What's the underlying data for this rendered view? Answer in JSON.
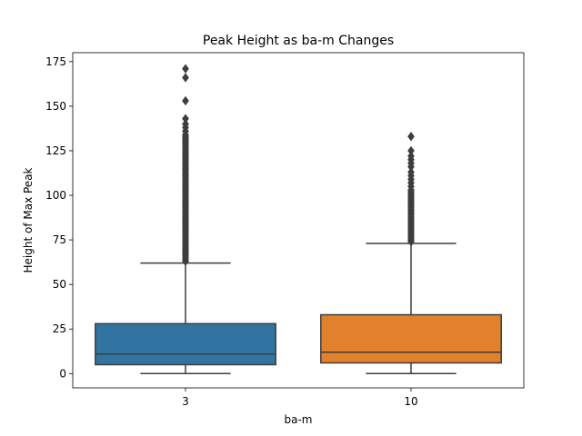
{
  "chart_data": {
    "type": "box",
    "title": "Peak Height as ba-m Changes",
    "xlabel": "ba-m",
    "ylabel": "Height of Max Peak",
    "ylim": [
      -8,
      180
    ],
    "yticks": [
      0,
      25,
      50,
      75,
      100,
      125,
      150,
      175
    ],
    "ytick_labels": [
      "0",
      "25",
      "50",
      "75",
      "100",
      "125",
      "150",
      "175"
    ],
    "categories": [
      "3",
      "10"
    ],
    "boxes": [
      {
        "category": "3",
        "color": "#3274a1",
        "whisker_low": 0,
        "q1": 5,
        "median": 11,
        "q3": 28,
        "whisker_high": 62,
        "outliers": [
          63,
          64,
          65,
          66,
          67,
          68,
          69,
          70,
          71,
          72,
          73,
          74,
          75,
          76,
          77,
          78,
          79,
          80,
          81,
          82,
          83,
          84,
          85,
          86,
          87,
          88,
          89,
          90,
          91,
          92,
          93,
          94,
          95,
          96,
          97,
          98,
          99,
          100,
          101,
          102,
          103,
          104,
          105,
          106,
          107,
          108,
          109,
          110,
          111,
          112,
          113,
          114,
          115,
          116,
          117,
          118,
          119,
          120,
          121,
          122,
          123,
          124,
          125,
          126,
          127,
          128,
          129,
          130,
          131,
          132,
          133,
          134,
          136,
          138,
          140,
          143,
          153,
          166,
          171
        ]
      },
      {
        "category": "10",
        "color": "#e1812c",
        "whisker_low": 0,
        "q1": 6,
        "median": 12,
        "q3": 33,
        "whisker_high": 73,
        "outliers": [
          74,
          75,
          76,
          77,
          78,
          79,
          80,
          81,
          82,
          83,
          84,
          85,
          86,
          87,
          88,
          89,
          90,
          91,
          92,
          93,
          94,
          95,
          96,
          97,
          98,
          99,
          100,
          101,
          102,
          103,
          105,
          107,
          109,
          111,
          113,
          116,
          118,
          120,
          122,
          125,
          133
        ]
      }
    ],
    "line_color": "#3d3d3d",
    "grid": false,
    "legend": "none"
  }
}
